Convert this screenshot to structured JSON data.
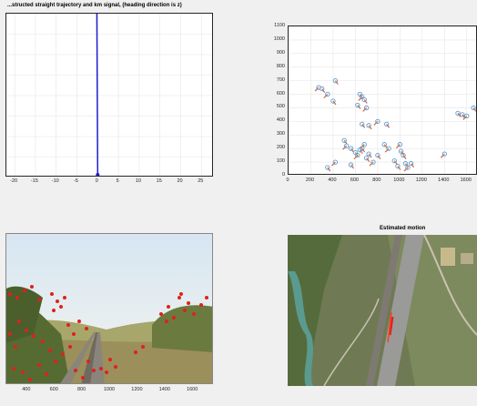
{
  "panels": {
    "trajectory": {
      "title": "...structed straight trajectory and km signal, (heading direction is z)",
      "x_ticks": [
        "-20",
        "-15",
        "-10",
        "-5",
        "0",
        "5",
        "10",
        "15",
        "20",
        "25"
      ]
    },
    "flow": {
      "x_ticks": [
        "0",
        "200",
        "400",
        "600",
        "800",
        "1000",
        "1200",
        "1400",
        "1600"
      ],
      "y_ticks": [
        "1100",
        "1000",
        "900",
        "800",
        "700",
        "600",
        "500",
        "400",
        "300",
        "200",
        "100",
        "0"
      ]
    },
    "camera": {
      "x_ticks": [
        "400",
        "600",
        "800",
        "1000",
        "1200",
        "1400",
        "1600"
      ]
    },
    "aerial": {
      "title": "Estimated motion"
    }
  },
  "colors": {
    "trajectory_line": "#1f1fcf",
    "flow_marker": "#5a9bd5",
    "flow_vector": "#e0602a",
    "feature_point": "#e0201c",
    "axes_bg": "#ffffff",
    "figure_bg": "#f0f0f0"
  },
  "chart_data": [
    {
      "type": "line",
      "title": "...structed straight trajectory and km signal, (heading direction is z)",
      "xlim": [
        -22,
        28
      ],
      "series": [
        {
          "x": [
            -0.2,
            0
          ],
          "y": [
            1,
            0
          ]
        }
      ]
    },
    {
      "type": "scatter",
      "xlim": [
        0,
        1700
      ],
      "ylim": [
        0,
        1100
      ],
      "points": [
        [
          270,
          650
        ],
        [
          300,
          640
        ],
        [
          420,
          700
        ],
        [
          350,
          600
        ],
        [
          400,
          550
        ],
        [
          640,
          600
        ],
        [
          660,
          580
        ],
        [
          680,
          560
        ],
        [
          620,
          520
        ],
        [
          700,
          500
        ],
        [
          660,
          380
        ],
        [
          720,
          370
        ],
        [
          800,
          400
        ],
        [
          880,
          380
        ],
        [
          500,
          260
        ],
        [
          520,
          220
        ],
        [
          560,
          200
        ],
        [
          600,
          170
        ],
        [
          620,
          150
        ],
        [
          640,
          190
        ],
        [
          660,
          200
        ],
        [
          680,
          230
        ],
        [
          700,
          130
        ],
        [
          720,
          160
        ],
        [
          760,
          100
        ],
        [
          800,
          150
        ],
        [
          860,
          230
        ],
        [
          900,
          200
        ],
        [
          950,
          110
        ],
        [
          980,
          70
        ],
        [
          1000,
          230
        ],
        [
          1030,
          150
        ],
        [
          1050,
          90
        ],
        [
          1070,
          60
        ],
        [
          1100,
          90
        ],
        [
          1010,
          180
        ],
        [
          420,
          100
        ],
        [
          350,
          60
        ],
        [
          560,
          80
        ],
        [
          1400,
          160
        ],
        [
          1520,
          460
        ],
        [
          1560,
          450
        ],
        [
          1600,
          440
        ],
        [
          1660,
          500
        ]
      ]
    }
  ]
}
